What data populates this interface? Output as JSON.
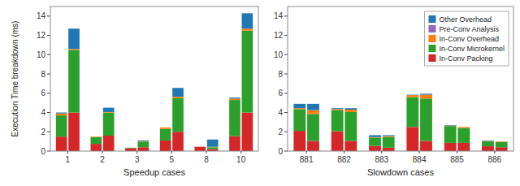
{
  "chart_data": [
    {
      "type": "bar",
      "stacked": true,
      "x_label": "Speedup cases",
      "y_label": "Execution Time breakdown (ms)",
      "categories": [
        "1",
        "2",
        "3",
        "5",
        "8",
        "10"
      ],
      "ylim": [
        0,
        15
      ],
      "yticks": [
        0,
        2,
        4,
        6,
        8,
        10,
        12,
        14
      ],
      "series": [
        {
          "color": "#d62728",
          "values": [
            [
              1.5,
              4.0
            ],
            [
              0.75,
              1.6
            ],
            [
              0.3,
              0.4
            ],
            [
              1.1,
              2.0
            ],
            [
              0.45,
              0.2
            ],
            [
              1.55,
              4.0
            ]
          ]
        },
        {
          "color": "#2ca02c",
          "values": [
            [
              2.2,
              6.5
            ],
            [
              0.7,
              2.4
            ],
            [
              0.05,
              0.55
            ],
            [
              1.2,
              3.5
            ],
            [
              0.0,
              0.2
            ],
            [
              3.75,
              8.5
            ]
          ]
        },
        {
          "color": "#ff7f0e",
          "values": [
            [
              0.2,
              0.1
            ],
            [
              0.05,
              0.05
            ],
            [
              0.0,
              0.05
            ],
            [
              0.15,
              0.15
            ],
            [
              0.0,
              0.05
            ],
            [
              0.15,
              0.2
            ]
          ]
        },
        {
          "color": "#9467bd",
          "values": [
            [
              0.0,
              0.0
            ],
            [
              0.0,
              0.0
            ],
            [
              0.0,
              0.0
            ],
            [
              0.0,
              0.0
            ],
            [
              0.0,
              0.0
            ],
            [
              0.0,
              0.0
            ]
          ]
        },
        {
          "color": "#1f77b4",
          "values": [
            [
              0.1,
              2.1
            ],
            [
              0.0,
              0.45
            ],
            [
              0.0,
              0.1
            ],
            [
              0.0,
              0.9
            ],
            [
              0.0,
              0.75
            ],
            [
              0.1,
              1.6
            ]
          ]
        }
      ]
    },
    {
      "type": "bar",
      "stacked": true,
      "x_label": "Slowdown cases",
      "categories": [
        "881",
        "882",
        "883",
        "884",
        "885",
        "886"
      ],
      "ylim": [
        0,
        15
      ],
      "yticks": [
        0,
        2,
        4,
        6,
        8,
        10,
        12,
        14
      ],
      "legend": "upper right",
      "series": [
        {
          "name": "In-Conv Packing",
          "color": "#d62728",
          "values": [
            [
              2.1,
              1.05
            ],
            [
              2.05,
              1.05
            ],
            [
              0.55,
              0.35
            ],
            [
              2.5,
              1.05
            ],
            [
              0.85,
              0.85
            ],
            [
              0.5,
              0.4
            ]
          ]
        },
        {
          "name": "In-Conv Microkernel",
          "color": "#2ca02c",
          "values": [
            [
              2.25,
              2.8
            ],
            [
              2.2,
              3.0
            ],
            [
              0.85,
              1.1
            ],
            [
              3.1,
              4.4
            ],
            [
              1.75,
              1.55
            ],
            [
              0.5,
              0.55
            ]
          ]
        },
        {
          "name": "In-Conv Overhead",
          "color": "#ff7f0e",
          "values": [
            [
              0.1,
              0.4
            ],
            [
              0.1,
              0.25
            ],
            [
              0.05,
              0.1
            ],
            [
              0.2,
              0.4
            ],
            [
              0.05,
              0.1
            ],
            [
              0.05,
              0.05
            ]
          ]
        },
        {
          "name": "Pre-Conv Analysis",
          "color": "#9467bd",
          "values": [
            [
              0.0,
              0.0
            ],
            [
              0.0,
              0.0
            ],
            [
              0.0,
              0.0
            ],
            [
              0.0,
              0.0
            ],
            [
              0.0,
              0.0
            ],
            [
              0.0,
              0.0
            ]
          ]
        },
        {
          "name": "Other Overhead",
          "color": "#1f77b4",
          "values": [
            [
              0.45,
              0.65
            ],
            [
              0.1,
              0.15
            ],
            [
              0.2,
              0.1
            ],
            [
              0.05,
              0.1
            ],
            [
              0.05,
              0.0
            ],
            [
              0.05,
              0.0
            ]
          ]
        }
      ]
    }
  ]
}
